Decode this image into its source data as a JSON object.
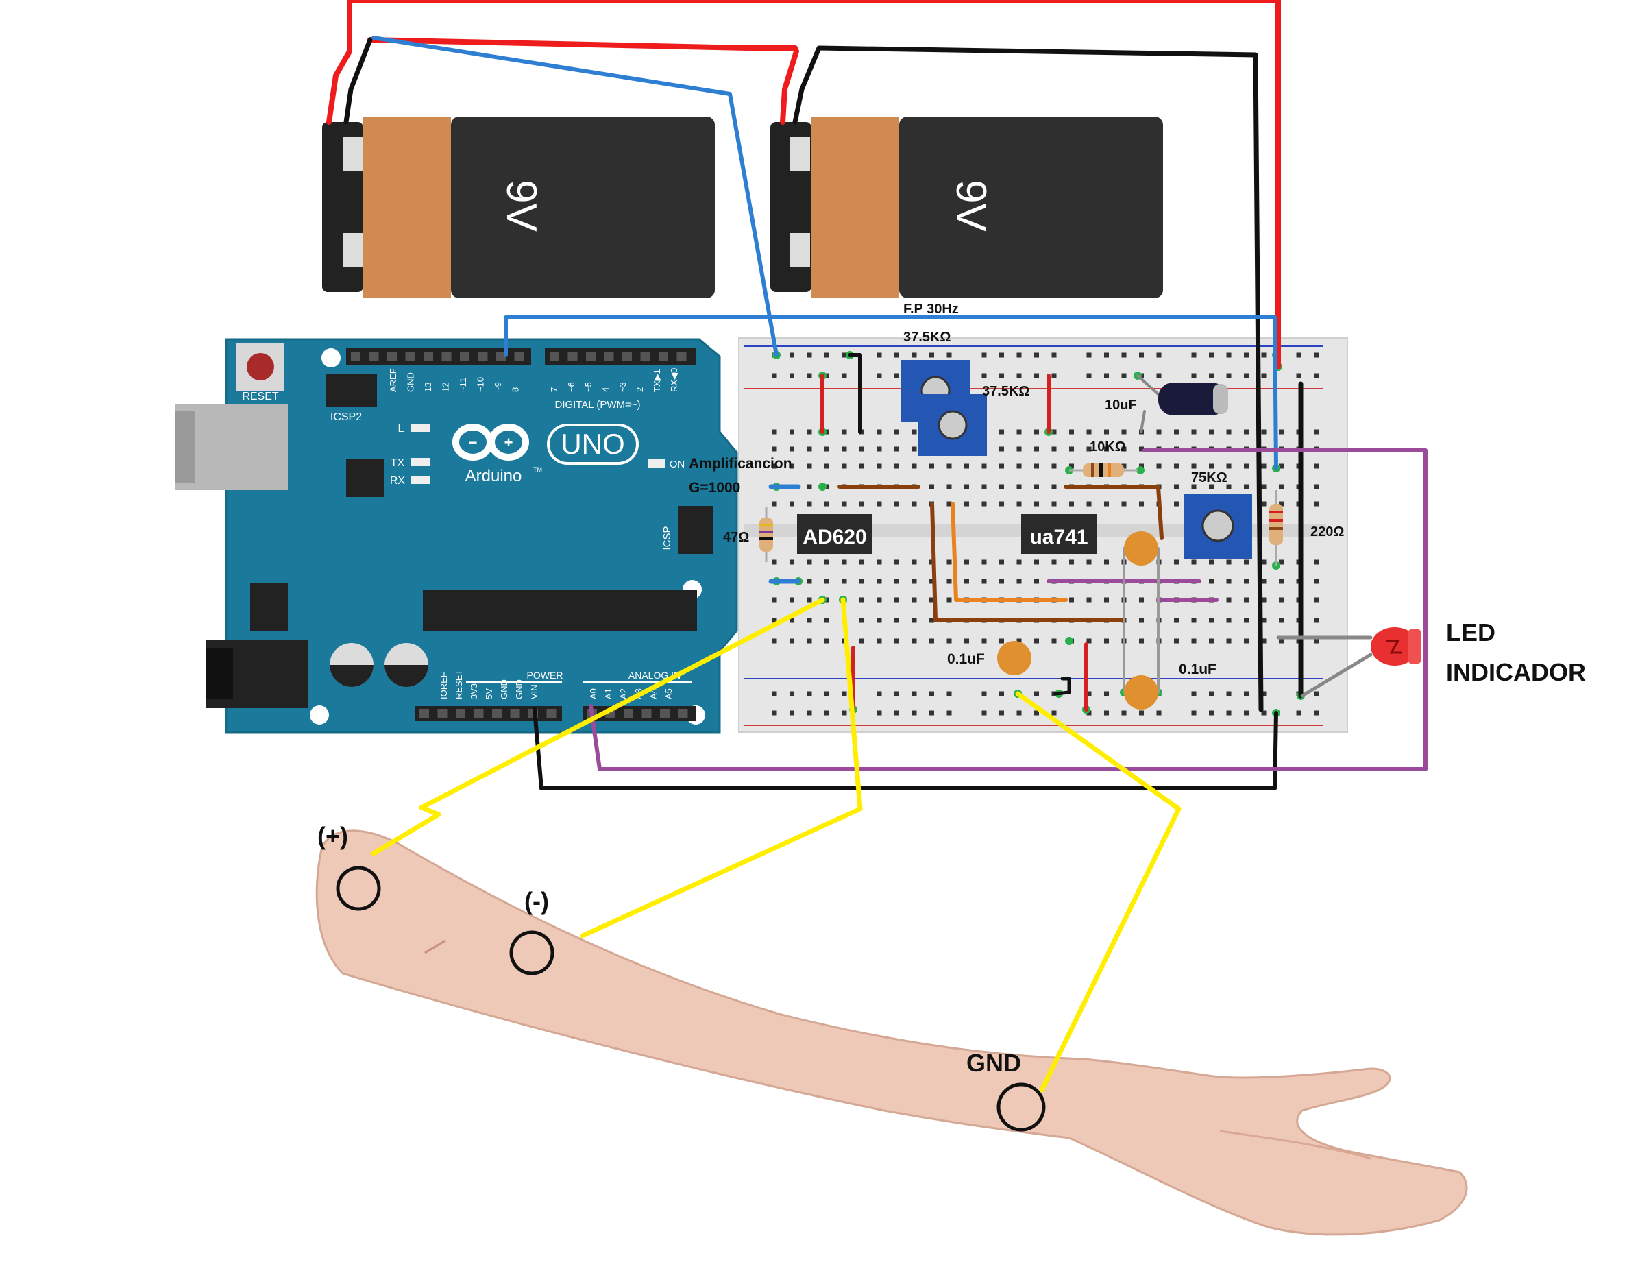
{
  "batteries": [
    {
      "label": "9V"
    },
    {
      "label": "9V"
    }
  ],
  "arduino": {
    "reset_label": "RESET",
    "icsp2_label": "ICSP2",
    "icsp_label": "ICSP",
    "brand": "Arduino",
    "model": "UNO",
    "tm": "TM",
    "digital_label": "DIGITAL (PWM=~)",
    "power_label": "POWER",
    "analog_label": "ANALOG IN",
    "led_l": "L",
    "led_tx": "TX",
    "led_rx": "RX",
    "led_on": "ON",
    "digital_pins": [
      "AREF",
      "GND",
      "13",
      "12",
      "~11",
      "~10",
      "~9",
      "8",
      "7",
      "~6",
      "~5",
      "4",
      "~3",
      "2",
      "TX▶1",
      "RX◀0"
    ],
    "power_pins": [
      "IOREF",
      "RESET",
      "3V3",
      "5V",
      "GND",
      "GND",
      "VIN"
    ],
    "analog_pins": [
      "A0",
      "A1",
      "A2",
      "A3",
      "A4",
      "A5"
    ]
  },
  "labels": {
    "fp": "F.P 30Hz",
    "r1": "37.5KΩ",
    "r2": "37.5KΩ",
    "cap_big": "10uF",
    "r10k": "10KΩ",
    "pot75k": "75KΩ",
    "amp_line1": "Amplificancion",
    "amp_line2": "G=1000",
    "r47": "47Ω",
    "chip1": "AD620",
    "chip2": "ua741",
    "r220": "220Ω",
    "led_line1": "LED",
    "led_line2": "INDICADOR",
    "c1": "0.1uF",
    "c2": "0.1uF",
    "plus": "(+)",
    "minus": "(-)",
    "gnd": "GND"
  },
  "colors": {
    "arduino_board": "#1b7a9b",
    "wire_red": "#ee1c1c",
    "wire_black": "#111111",
    "wire_blue": "#2e7fd4",
    "wire_purple": "#9a4b9a",
    "wire_yellow": "#ffee00",
    "wire_orange": "#e8831d",
    "wire_brown": "#8a3f0c",
    "skin": "#efc9b7",
    "battery_body": "#2f2f2f",
    "battery_cap": "#d18a4f"
  }
}
